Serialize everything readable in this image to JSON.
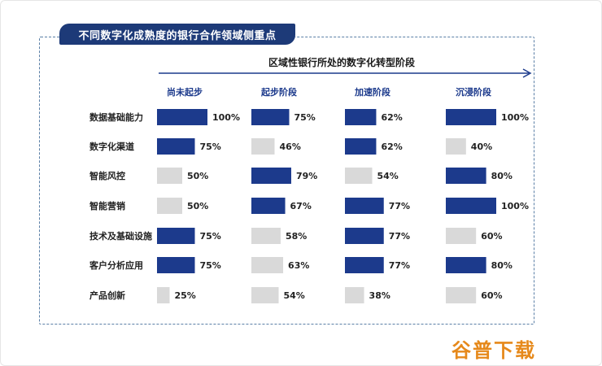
{
  "title": "不同数字化成熟度的银行合作领域侧重点",
  "arrow_label": "区域性银行所处的数字化转型阶段",
  "watermark": "谷普下载",
  "colors": {
    "high": "#1c3a8c",
    "low": "#d9d9d9",
    "arrow": "#1c3a8c"
  },
  "chart_data": {
    "type": "bar",
    "orientation": "horizontal",
    "title": "不同数字化成熟度的银行合作领域侧重点",
    "categories": [
      "数据基础能力",
      "数字化渠道",
      "智能风控",
      "智能营销",
      "技术及基础设施",
      "客户分析应用",
      "产品创新"
    ],
    "series": [
      {
        "name": "尚未起步",
        "values": [
          100,
          75,
          50,
          50,
          75,
          75,
          25
        ],
        "highlight": [
          true,
          true,
          false,
          false,
          true,
          true,
          false
        ]
      },
      {
        "name": "起步阶段",
        "values": [
          75,
          46,
          79,
          67,
          58,
          63,
          54
        ],
        "highlight": [
          true,
          false,
          true,
          true,
          false,
          false,
          false
        ]
      },
      {
        "name": "加速阶段",
        "values": [
          62,
          62,
          54,
          77,
          77,
          77,
          38
        ],
        "highlight": [
          true,
          true,
          false,
          true,
          true,
          true,
          false
        ]
      },
      {
        "name": "沉浸阶段",
        "values": [
          100,
          40,
          80,
          100,
          60,
          80,
          60
        ],
        "highlight": [
          true,
          false,
          true,
          true,
          false,
          true,
          false
        ]
      }
    ],
    "value_suffix": "%",
    "xlim": [
      0,
      100
    ]
  }
}
